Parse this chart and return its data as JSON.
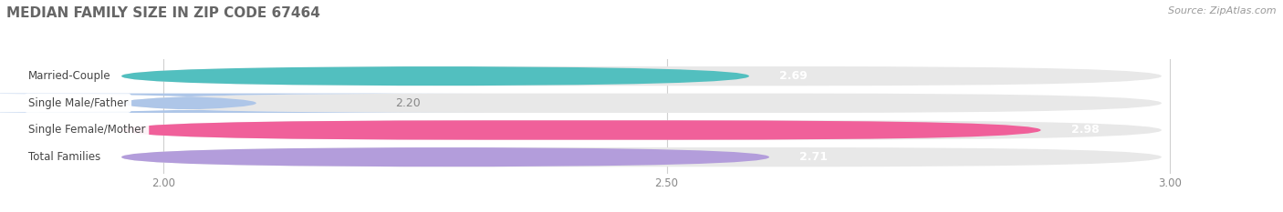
{
  "title": "MEDIAN FAMILY SIZE IN ZIP CODE 67464",
  "source": "Source: ZipAtlas.com",
  "categories": [
    "Married-Couple",
    "Single Male/Father",
    "Single Female/Mother",
    "Total Families"
  ],
  "values": [
    2.69,
    2.2,
    2.98,
    2.71
  ],
  "bar_colors": [
    "#52bfbf",
    "#aec6e8",
    "#f0609a",
    "#b39ddb"
  ],
  "bar_bg_color": "#e8e8e8",
  "xlim_min": 1.85,
  "xlim_max": 3.1,
  "xticks": [
    2.0,
    2.5,
    3.0
  ],
  "bar_height": 0.72,
  "title_color": "#666666",
  "source_color": "#999999",
  "background_color": "#ffffff",
  "outside_label_idx": 1
}
